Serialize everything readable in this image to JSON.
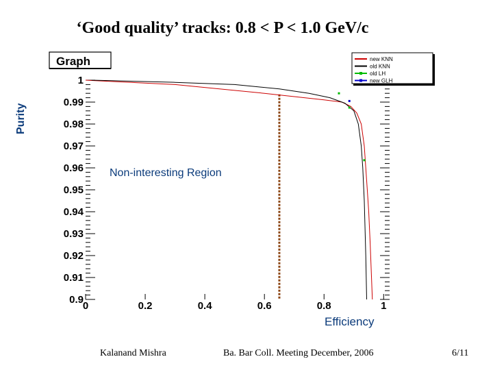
{
  "slide_title": "‘Good quality’ tracks:  0.8 < P < 1.0 GeV/c",
  "footer": {
    "author": "Kalanand Mishra",
    "meeting": "Ba. Bar Coll. Meeting December, 2006",
    "page": "6/11"
  },
  "colors": {
    "new_knn": "#cc0000",
    "old_knn": "#000000",
    "old_lh": "#00bb00",
    "new_glh": "#0000cc",
    "cut_line": "#8b4513",
    "axis_label": "#0a3a7a"
  },
  "chart_data": {
    "type": "line",
    "graph_title": "Graph",
    "xlabel": "Efficiency",
    "ylabel": "Purity",
    "xlim": [
      0,
      1.02
    ],
    "ylim": [
      0.9,
      1.0
    ],
    "x_ticks": [
      "0",
      "0.2",
      "0.4",
      "0.6",
      "0.8",
      "1"
    ],
    "y_ticks": [
      "1",
      "0.99",
      "0.98",
      "0.97",
      "0.96",
      "0.95",
      "0.94",
      "0.93",
      "0.92",
      "0.91",
      "0.9"
    ],
    "legend_placement": "top-right",
    "annotation": "Non-interesting Region",
    "cut_efficiency": 0.65,
    "series": [
      {
        "name": "new KNN",
        "style": "line",
        "color": "#cc0000",
        "points": [
          [
            0.0,
            1.0
          ],
          [
            0.3,
            0.998
          ],
          [
            0.6,
            0.994
          ],
          [
            0.8,
            0.991
          ],
          [
            0.86,
            0.99
          ],
          [
            0.89,
            0.988
          ],
          [
            0.91,
            0.985
          ],
          [
            0.925,
            0.98
          ],
          [
            0.935,
            0.97
          ],
          [
            0.94,
            0.96
          ],
          [
            0.945,
            0.95
          ],
          [
            0.95,
            0.94
          ],
          [
            0.955,
            0.925
          ],
          [
            0.962,
            0.9
          ]
        ]
      },
      {
        "name": "old KNN",
        "style": "line",
        "color": "#000000",
        "points": [
          [
            0.02,
            1.0
          ],
          [
            0.3,
            0.999
          ],
          [
            0.5,
            0.998
          ],
          [
            0.65,
            0.996
          ],
          [
            0.75,
            0.994
          ],
          [
            0.82,
            0.992
          ],
          [
            0.87,
            0.9895
          ],
          [
            0.9,
            0.986
          ],
          [
            0.915,
            0.98
          ],
          [
            0.925,
            0.97
          ],
          [
            0.93,
            0.96
          ],
          [
            0.935,
            0.945
          ],
          [
            0.94,
            0.92
          ],
          [
            0.943,
            0.9
          ]
        ]
      },
      {
        "name": "old LH",
        "style": "points",
        "color": "#00bb00",
        "points": [
          [
            0.85,
            0.994
          ],
          [
            0.885,
            0.9875
          ],
          [
            0.935,
            0.9635
          ]
        ]
      },
      {
        "name": "new GLH",
        "style": "points",
        "color": "#0000cc",
        "points": [
          [
            0.885,
            0.9905
          ]
        ]
      }
    ]
  }
}
